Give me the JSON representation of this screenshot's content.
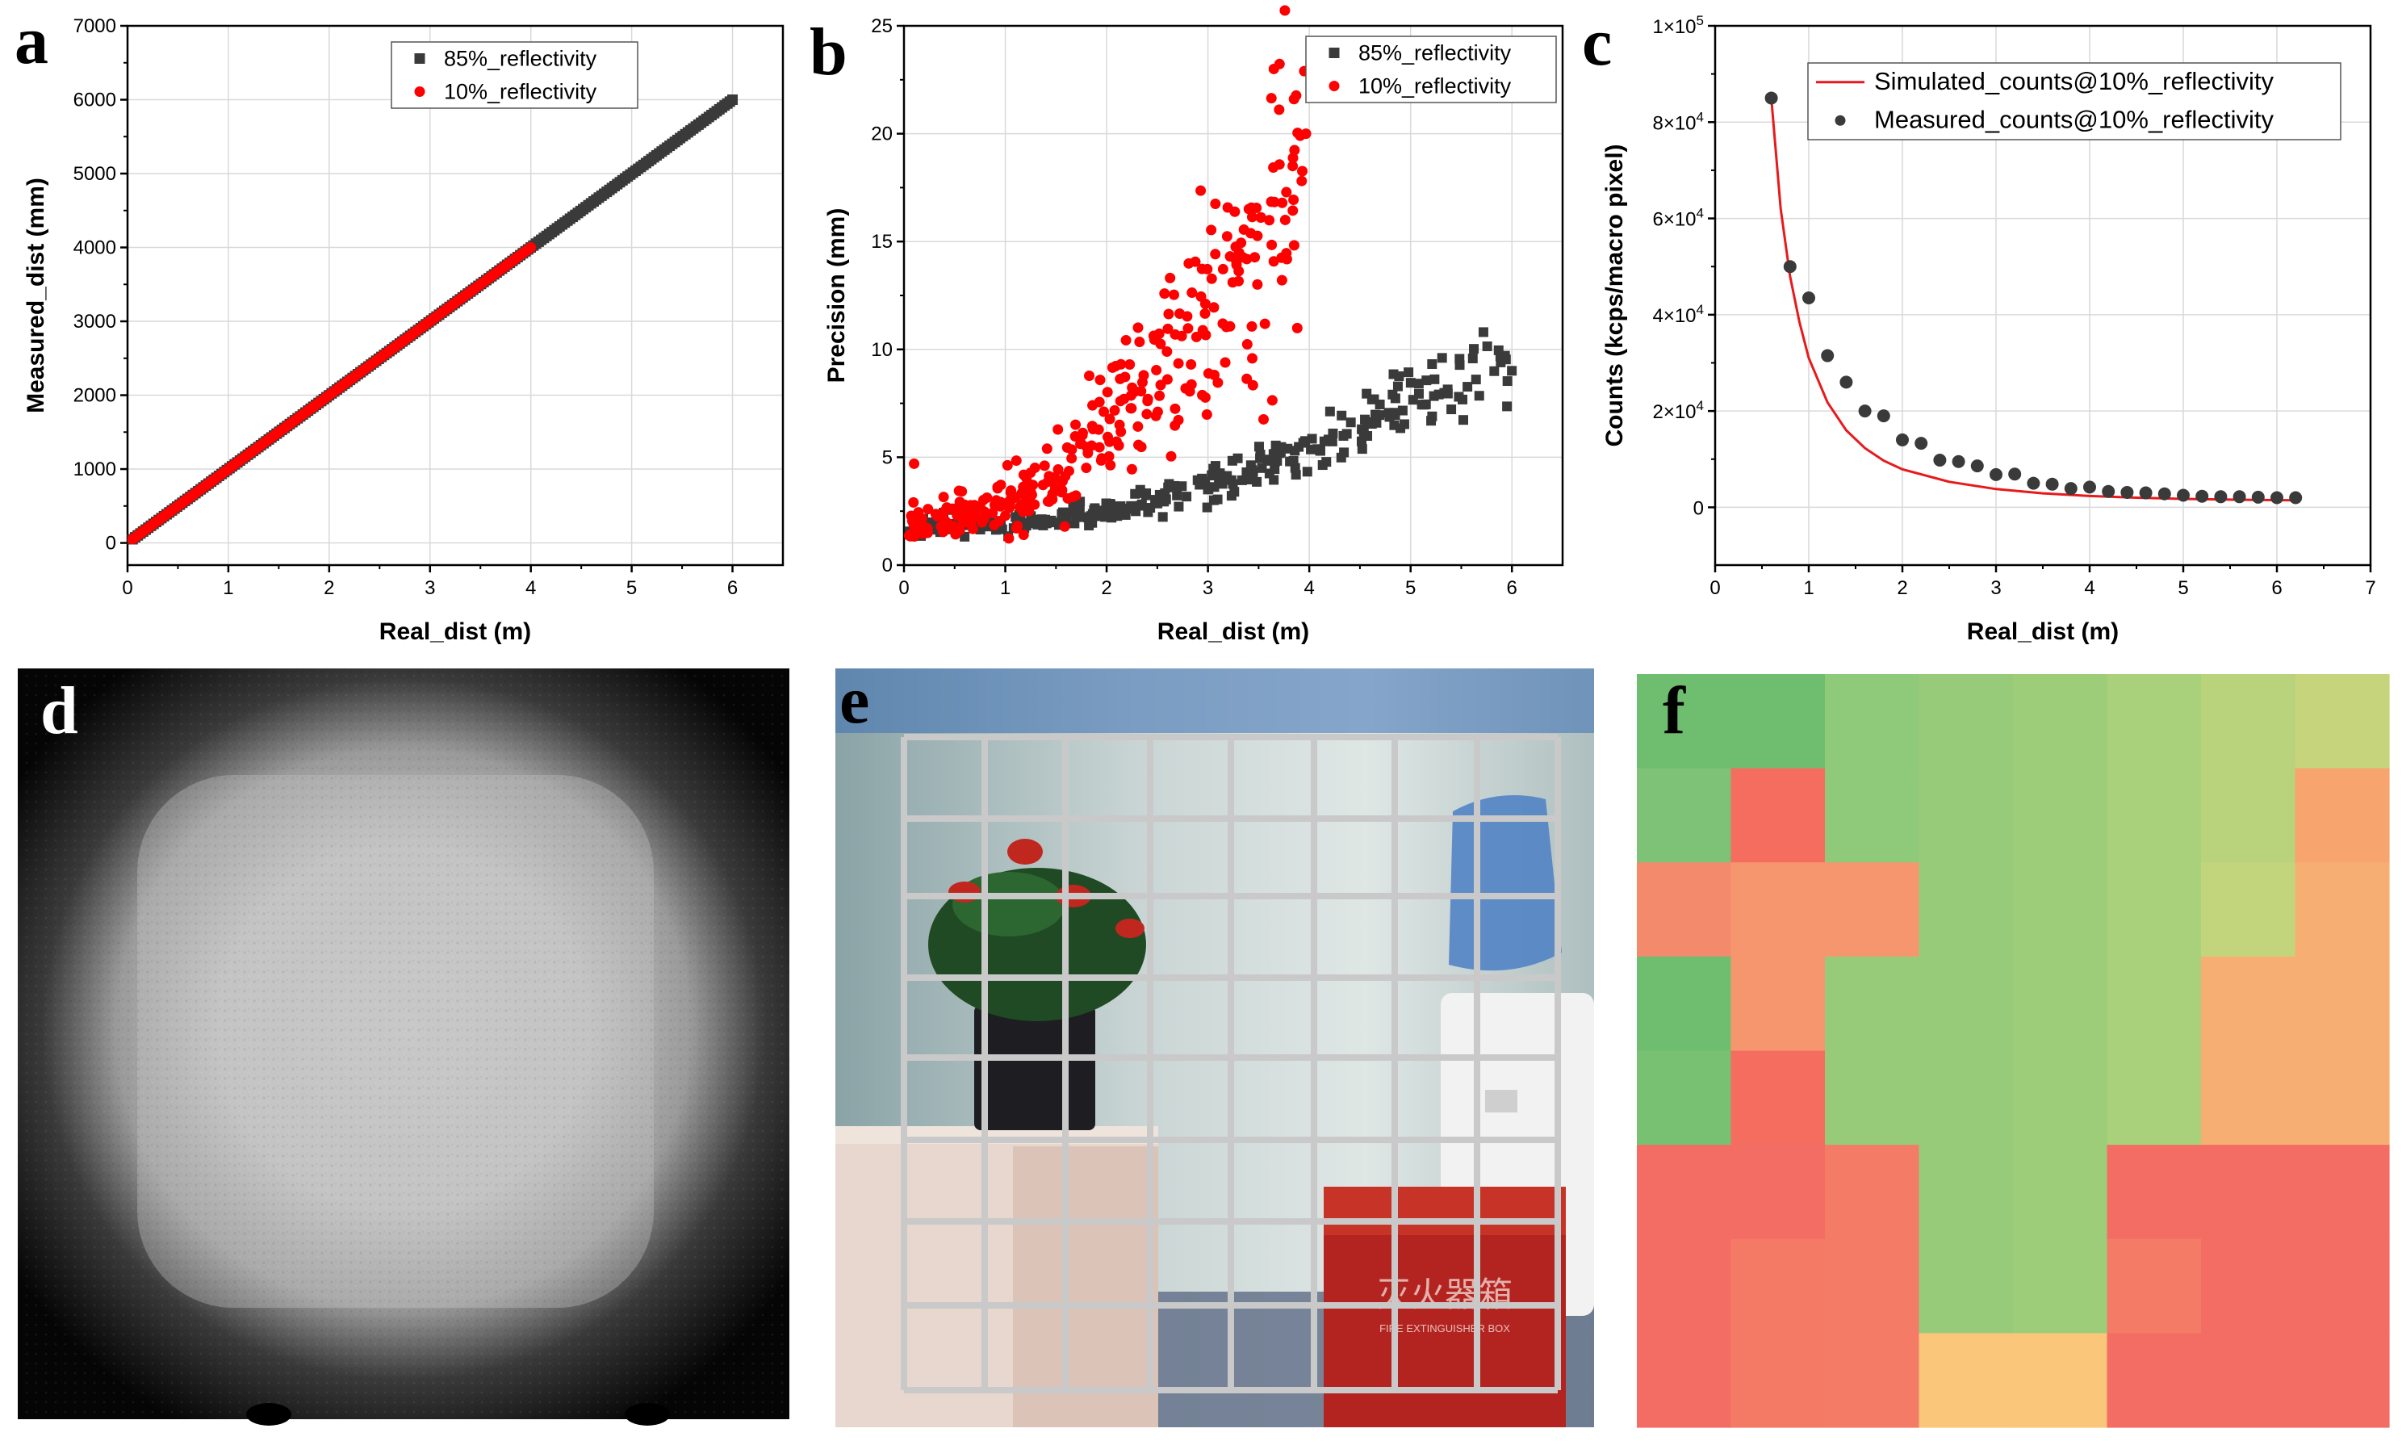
{
  "panels": {
    "a": {
      "label": "a"
    },
    "b": {
      "label": "b"
    },
    "c": {
      "label": "c"
    },
    "d": {
      "label": "d"
    },
    "e": {
      "label": "e",
      "overlay_text": "灭火器箱",
      "overlay_subtext": "FIRE EXTINGUISHER BOX"
    },
    "f": {
      "label": "f"
    }
  },
  "colors": {
    "dark": "#3a3a3a",
    "red": "#ff0000",
    "red_line": "#e8191b",
    "grid": "#d9d9d9"
  },
  "chart_data": [
    {
      "id": "a",
      "type": "scatter",
      "xlabel": "Real_dist (m)",
      "ylabel": "Measured_dist (mm)",
      "xlim": [
        0,
        6.5
      ],
      "ylim": [
        -300,
        7000
      ],
      "xticks": [
        0,
        1,
        2,
        3,
        4,
        5,
        6
      ],
      "yticks": [
        0,
        1000,
        2000,
        3000,
        4000,
        5000,
        6000,
        7000
      ],
      "grid": true,
      "legend": "top-center",
      "series": [
        {
          "name": "85%_reflectivity",
          "marker": "square",
          "color": "#3a3a3a",
          "x_range": [
            0.05,
            6.0
          ],
          "slope_mm_per_m": 1000,
          "intercept": 0
        },
        {
          "name": "10%_reflectivity",
          "marker": "circle",
          "color": "#ff0000",
          "x_range": [
            0.05,
            4.0
          ],
          "slope_mm_per_m": 1000,
          "intercept": 0
        }
      ]
    },
    {
      "id": "b",
      "type": "scatter",
      "xlabel": "Real_dist (m)",
      "ylabel": "Precision (mm)",
      "xlim": [
        0,
        6.5
      ],
      "ylim": [
        0,
        25
      ],
      "xticks": [
        0,
        1,
        2,
        3,
        4,
        5,
        6
      ],
      "yticks": [
        0,
        5,
        10,
        15,
        20,
        25
      ],
      "grid": true,
      "legend": "top-right",
      "series": [
        {
          "name": "85%_reflectivity",
          "marker": "square",
          "color": "#3a3a3a",
          "trend_x": [
            0,
            1,
            2,
            3,
            4,
            5,
            6
          ],
          "trend_y": [
            1.7,
            1.9,
            2.6,
            3.7,
            5.2,
            7.4,
            9.8
          ],
          "x_range": [
            0.05,
            6.0
          ],
          "spread": 0.12
        },
        {
          "name": "10%_reflectivity",
          "marker": "circle",
          "color": "#ff0000",
          "trend_x": [
            0,
            0.5,
            1,
            1.5,
            2,
            2.5,
            3,
            3.5,
            4
          ],
          "trend_y": [
            2.0,
            2.2,
            2.8,
            4.0,
            6.0,
            8.5,
            11.5,
            15.5,
            19.5
          ],
          "x_range": [
            0.05,
            4.0
          ],
          "spread": 0.22,
          "outliers": [
            [
              0.1,
              4.7
            ],
            [
              3.65,
              23.0
            ],
            [
              3.95,
              22.9
            ]
          ]
        }
      ]
    },
    {
      "id": "c",
      "type": "scatter",
      "xlabel": "Real_dist (m)",
      "ylabel": "Counts (kcps/macro pixel)",
      "xlim": [
        0,
        7
      ],
      "ylim": [
        -12000,
        100000
      ],
      "xticks": [
        0,
        1,
        2,
        3,
        4,
        5,
        6,
        7
      ],
      "yticks": [
        0,
        20000,
        40000,
        60000,
        80000,
        100000
      ],
      "ytick_labels": [
        {
          "base": "0",
          "exp": ""
        },
        {
          "base": "2×10",
          "exp": "4"
        },
        {
          "base": "4×10",
          "exp": "4"
        },
        {
          "base": "6×10",
          "exp": "4"
        },
        {
          "base": "8×10",
          "exp": "4"
        },
        {
          "base": "1×10",
          "exp": "5"
        }
      ],
      "grid": true,
      "legend": "top-right",
      "series": [
        {
          "name": "Simulated_counts@10%_reflectivity",
          "type": "line",
          "color": "#e8191b",
          "x": [
            0.6,
            0.7,
            0.8,
            0.9,
            1.0,
            1.2,
            1.4,
            1.6,
            1.8,
            2.0,
            2.5,
            3.0,
            3.5,
            4.0,
            4.5,
            5.0,
            5.5,
            6.0,
            6.2
          ],
          "y": [
            85000,
            62000,
            48000,
            38500,
            31000,
            21800,
            16000,
            12300,
            9700,
            7900,
            5300,
            3800,
            2900,
            2350,
            2000,
            1750,
            1600,
            1500,
            1450
          ]
        },
        {
          "name": "Measured_counts@10%_reflectivity",
          "type": "scatter",
          "marker": "circle",
          "color": "#3a3a3a",
          "x": [
            0.6,
            0.8,
            1.0,
            1.2,
            1.4,
            1.6,
            1.8,
            2.0,
            2.2,
            2.4,
            2.6,
            2.8,
            3.0,
            3.2,
            3.4,
            3.6,
            3.8,
            4.0,
            4.2,
            4.4,
            4.6,
            4.8,
            5.0,
            5.2,
            5.4,
            5.6,
            5.8,
            6.0,
            6.2
          ],
          "y": [
            85000,
            50000,
            43500,
            31500,
            26000,
            20000,
            19000,
            14000,
            13300,
            9800,
            9500,
            8600,
            6800,
            6900,
            5000,
            4800,
            3900,
            4200,
            3300,
            3100,
            3000,
            2800,
            2500,
            2300,
            2200,
            2200,
            2100,
            2000,
            2000
          ]
        }
      ]
    },
    {
      "id": "f",
      "type": "heatmap",
      "rows": 8,
      "cols": 8,
      "values": [
        [
          "#6fbd6f",
          "#6fbd6f",
          "#8fc97a",
          "#98cb79",
          "#9ecd79",
          "#a9d07a",
          "#b8d37b",
          "#c6d47c"
        ],
        [
          "#7dc277",
          "#f46d5f",
          "#8fc97a",
          "#98cb79",
          "#9ecd79",
          "#a9d07a",
          "#b8d37b",
          "#f7a46f"
        ],
        [
          "#f48a6c",
          "#f6966e",
          "#f6966e",
          "#98cb79",
          "#9ecd79",
          "#a9d07a",
          "#c3d57c",
          "#f7ae72"
        ],
        [
          "#6fbd6f",
          "#f6966e",
          "#98cb79",
          "#98cb79",
          "#9ecd79",
          "#a9d07a",
          "#f7ae72",
          "#f7ae72"
        ],
        [
          "#78c072",
          "#f46d5f",
          "#98cb79",
          "#98cb79",
          "#9ecd79",
          "#a9d07a",
          "#f7ae72",
          "#f7ae72"
        ],
        [
          "#f46d64",
          "#f46d64",
          "#f47c66",
          "#98cb79",
          "#9ecd79",
          "#f46d64",
          "#f46d64",
          "#f46d64"
        ],
        [
          "#f46d64",
          "#f47a66",
          "#f47c66",
          "#98cb79",
          "#9ecd79",
          "#f47c66",
          "#f46d64",
          "#f46d64"
        ],
        [
          "#f46d64",
          "#f47a66",
          "#f47c66",
          "#f9c67a",
          "#f9c67a",
          "#f46d64",
          "#f46d64",
          "#f46d64"
        ]
      ]
    }
  ]
}
